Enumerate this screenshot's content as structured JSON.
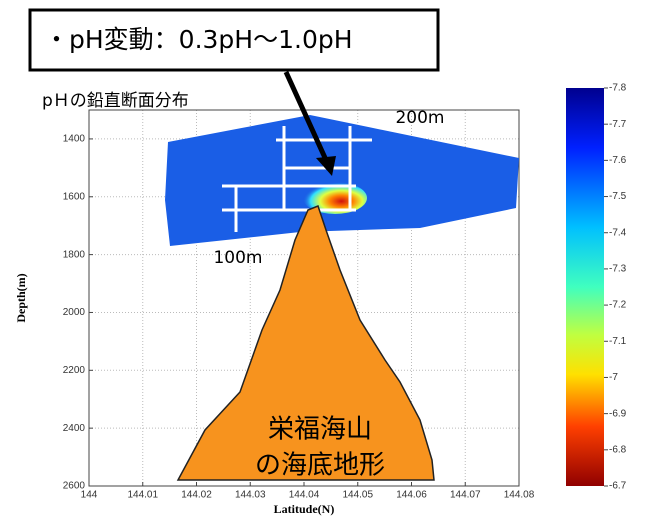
{
  "chart_data": {
    "type": "section",
    "title": "pＨの鉛直断面分布",
    "annotation": "・pH変動：0.3pH〜1.0pH",
    "scale_labels": [
      "200m",
      "100m"
    ],
    "feature_label": [
      "栄福海山",
      "の海底地形"
    ],
    "x_label": "Latitude(N)",
    "y_label": "Depth(m)",
    "xlim": [
      144,
      144.08
    ],
    "xticks": [
      144,
      144.01,
      144.02,
      144.03,
      144.04,
      144.05,
      144.06,
      144.07,
      144.08
    ],
    "ylim": [
      1300,
      2600
    ],
    "y_inverted": true,
    "yticks": [
      1400,
      1600,
      1800,
      2000,
      2200,
      2400,
      2600
    ],
    "grid": true,
    "colorbar": {
      "lim": [
        -7.8,
        -6.7
      ],
      "ticks": [
        -7.8,
        -7.7,
        -7.6,
        -7.5,
        -7.4,
        -7.3,
        -7.2,
        -7.1,
        -7,
        -6.9,
        -6.8,
        -6.7
      ]
    }
  }
}
